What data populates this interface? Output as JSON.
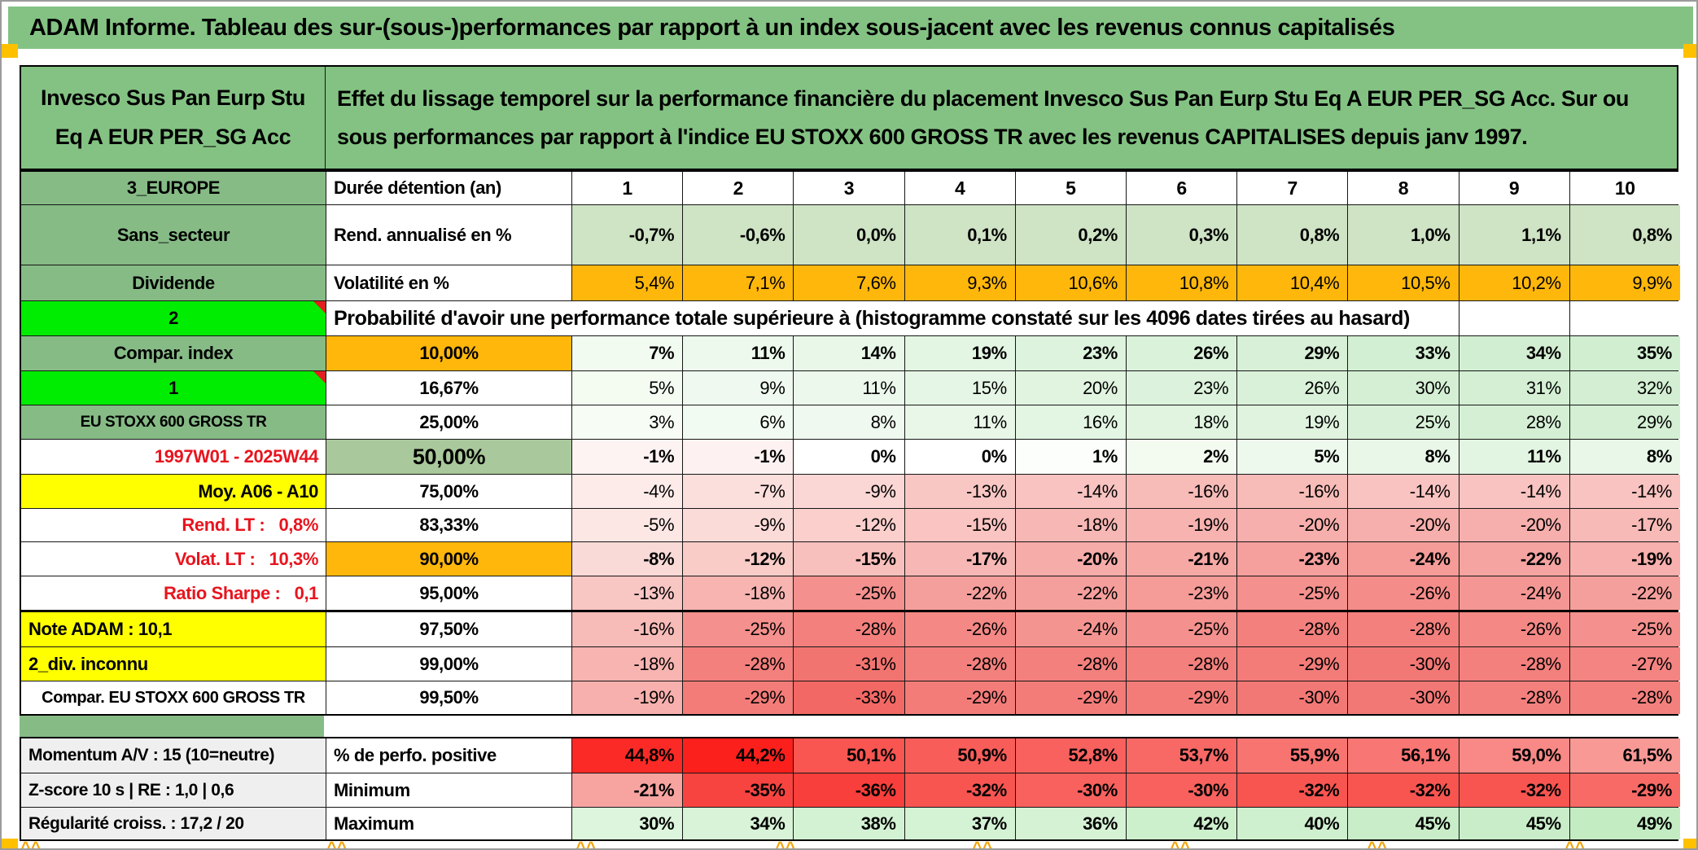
{
  "title": "ADAM Informe. Tableau des sur-(sous-)performances par rapport à un index sous-jacent avec les revenus connus capitalisés",
  "header": {
    "fund_name": "Invesco Sus Pan Eurp Stu Eq A EUR PER_SG Acc",
    "description": "Effet du lissage temporel sur la performance financière du placement Invesco Sus Pan Eurp Stu Eq A EUR PER_SG Acc. Sur ou sous performances par rapport à l'indice EU STOXX 600 GROSS TR avec les revenus CAPITALISES depuis janv 1997."
  },
  "colors": {
    "header_green": "#83C283",
    "label_green": "#86BB86",
    "bright_green": "#00EC00",
    "sage": "#A9C89B",
    "light_green_row": "#CFE3C5",
    "orange": "#FFB70B",
    "yellow": "#FFFF00",
    "red_text": "#E8141E",
    "gray_label": "#EFEFEF",
    "corner_red": "#E02020",
    "edge_orange": "#FFC000",
    "caret_orange": "#F2A50C",
    "white": "#FFFFFF"
  },
  "columns_header": {
    "left": "3_EUROPE",
    "label": "Durée détention (an)",
    "durations": [
      "1",
      "2",
      "3",
      "4",
      "5",
      "6",
      "7",
      "8",
      "9",
      "10"
    ]
  },
  "stat_rows": [
    {
      "left": {
        "t": "Sans_secteur",
        "bg": "#86BB86",
        "align": "c"
      },
      "mid": {
        "t": "Rend. annualisé en %",
        "bg": "#FFFFFF",
        "align": "l"
      },
      "bold": true,
      "v": [
        "-0,7%",
        "-0,6%",
        "0,0%",
        "0,1%",
        "0,2%",
        "0,3%",
        "0,8%",
        "1,0%",
        "1,1%",
        "0,8%"
      ],
      "bg": [
        "#CFE3C5",
        "#CFE3C5",
        "#CFE3C5",
        "#CFE3C5",
        "#CFE3C5",
        "#CFE3C5",
        "#CFE3C5",
        "#CFE3C5",
        "#CFE3C5",
        "#CFE3C5"
      ]
    },
    {
      "left": {
        "t": "Dividende",
        "bg": "#86BB86",
        "align": "c"
      },
      "mid": {
        "t": "Volatilité en %",
        "bg": "#FFFFFF",
        "align": "l"
      },
      "bold": false,
      "v": [
        "5,4%",
        "7,1%",
        "7,6%",
        "9,3%",
        "10,6%",
        "10,8%",
        "10,4%",
        "10,5%",
        "10,2%",
        "9,9%"
      ],
      "bg": [
        "#FFB70B",
        "#FFB70B",
        "#FFB70B",
        "#FFB70B",
        "#FFB70B",
        "#FFB70B",
        "#FFB70B",
        "#FFB70B",
        "#FFB70B",
        "#FFB70B"
      ]
    }
  ],
  "probability_banner": {
    "left": {
      "t": "2",
      "bg": "#00EC00",
      "align": "c",
      "corner": true
    },
    "note": "Probabilité d'avoir une performance totale supérieure à (histogramme constaté sur les 4096 dates tirées au hasard)",
    "empty_cols": 2
  },
  "probability_rows": [
    {
      "left": {
        "t": "Compar. index",
        "bg": "#86BB86",
        "align": "c"
      },
      "mid": {
        "t": "10,00%",
        "bg": "#FFB70B",
        "align": "c"
      },
      "bold": true,
      "v": [
        "7%",
        "11%",
        "14%",
        "19%",
        "23%",
        "26%",
        "29%",
        "33%",
        "34%",
        "35%"
      ],
      "bg": [
        "#F2FBF0",
        "#EDF9ED",
        "#E9F7E9",
        "#E3F5E3",
        "#DEF3DE",
        "#DAF2DA",
        "#D7F0D7",
        "#D3EFD3",
        "#D2EED2",
        "#D1EED1"
      ]
    },
    {
      "left": {
        "t": "1",
        "bg": "#00EC00",
        "align": "c",
        "corner": true
      },
      "mid": {
        "t": "16,67%",
        "bg": "#FFFFFF",
        "align": "c"
      },
      "bold": false,
      "v": [
        "5%",
        "9%",
        "11%",
        "15%",
        "20%",
        "23%",
        "26%",
        "30%",
        "31%",
        "32%"
      ],
      "bg": [
        "#F4FCF2",
        "#EFF9EF",
        "#ECF8EC",
        "#E6F6E6",
        "#E0F4E0",
        "#DCF2DC",
        "#D9F1D9",
        "#D5EFD5",
        "#D4EFD4",
        "#D3EED3"
      ]
    },
    {
      "left": {
        "t": "EU STOXX 600 GROSS TR",
        "bg": "#86BB86",
        "align": "c",
        "size": 19
      },
      "mid": {
        "t": "25,00%",
        "bg": "#FFFFFF",
        "align": "c"
      },
      "bold": false,
      "v": [
        "3%",
        "6%",
        "8%",
        "11%",
        "16%",
        "18%",
        "19%",
        "25%",
        "28%",
        "29%"
      ],
      "bg": [
        "#F7FDF5",
        "#F2FBF1",
        "#EFF9EF",
        "#E9F7E9",
        "#E3F5E3",
        "#E0F4E0",
        "#DFF3DF",
        "#D8F0D8",
        "#D5EFD5",
        "#D4EFD4"
      ]
    },
    {
      "left": {
        "t": "1997W01 - 2025W44",
        "bg": "#FFFFFF",
        "fg": "#E8141E",
        "align": "r"
      },
      "mid": {
        "t": "50,00%",
        "bg": "#A9C89B",
        "align": "c",
        "big": true
      },
      "bold": true,
      "v": [
        "-1%",
        "-1%",
        "0%",
        "0%",
        "1%",
        "2%",
        "5%",
        "8%",
        "11%",
        "8%"
      ],
      "bg": [
        "#FDF3F2",
        "#FDF2F1",
        "#FFFFFF",
        "#FFFFFF",
        "#FBFEFA",
        "#F3FBF1",
        "#EEF9EE",
        "#E8F7E8",
        "#E2F5E2",
        "#E8F7E8"
      ]
    },
    {
      "left": {
        "t": "Moy. A06 - A10",
        "bg": "#FFFF00",
        "align": "r"
      },
      "mid": {
        "t": "75,00%",
        "bg": "#FFFFFF",
        "align": "c"
      },
      "bold": false,
      "v": [
        "-4%",
        "-7%",
        "-9%",
        "-13%",
        "-14%",
        "-16%",
        "-16%",
        "-14%",
        "-14%",
        "-14%"
      ],
      "bg": [
        "#FCEBE9",
        "#FBDFDC",
        "#FAD7D4",
        "#F8C7C4",
        "#F8C3C0",
        "#F7BBB8",
        "#F7BBB8",
        "#F8C3C0",
        "#F8C3C0",
        "#F8C3C0"
      ]
    },
    {
      "left": {
        "t": "Rend. LT :   0,8%",
        "bg": "#FFFFFF",
        "fg": "#E8141E",
        "align": "r"
      },
      "mid": {
        "t": "83,33%",
        "bg": "#FFFFFF",
        "align": "c"
      },
      "bold": false,
      "v": [
        "-5%",
        "-9%",
        "-12%",
        "-15%",
        "-18%",
        "-19%",
        "-20%",
        "-20%",
        "-20%",
        "-17%"
      ],
      "bg": [
        "#FCE7E4",
        "#FBDBD8",
        "#FACFCC",
        "#F9C4C1",
        "#F7B7B4",
        "#F7B3B0",
        "#F6AFAC",
        "#F6AFAC",
        "#F6AFAC",
        "#F7BAB7"
      ]
    },
    {
      "left": {
        "t": "Volat. LT :   10,3%",
        "bg": "#FFFFFF",
        "fg": "#E8141E",
        "align": "r"
      },
      "mid": {
        "t": "90,00%",
        "bg": "#FFB70B",
        "align": "c"
      },
      "bold": true,
      "v": [
        "-8%",
        "-12%",
        "-15%",
        "-17%",
        "-20%",
        "-21%",
        "-23%",
        "-24%",
        "-22%",
        "-19%"
      ],
      "bg": [
        "#FADAD7",
        "#F9CCC8",
        "#F8C0BD",
        "#F7B8B5",
        "#F6ACA9",
        "#F6A8A5",
        "#F5A09D",
        "#F59C99",
        "#F5A4A1",
        "#F7B0AD"
      ]
    },
    {
      "left": {
        "t": "Ratio Sharpe :   0,1",
        "bg": "#FFFFFF",
        "fg": "#E8141E",
        "align": "r"
      },
      "mid": {
        "t": "95,00%",
        "bg": "#FFFFFF",
        "align": "c"
      },
      "bold": false,
      "v": [
        "-13%",
        "-18%",
        "-25%",
        "-22%",
        "-22%",
        "-23%",
        "-25%",
        "-26%",
        "-24%",
        "-22%"
      ],
      "bg": [
        "#F8C6C3",
        "#F7B4B1",
        "#F4908D",
        "#F59F9C",
        "#F59F9C",
        "#F59B98",
        "#F4908D",
        "#F48C89",
        "#F49794",
        "#F59F9C"
      ]
    },
    {
      "left": {
        "t": "Note ADAM : 10,1",
        "bg": "#FFFF00",
        "align": "l"
      },
      "mid": {
        "t": "97,50%",
        "bg": "#FFFFFF",
        "align": "c"
      },
      "bold": false,
      "thick_top": true,
      "v": [
        "-16%",
        "-25%",
        "-28%",
        "-26%",
        "-24%",
        "-25%",
        "-28%",
        "-28%",
        "-26%",
        "-25%"
      ],
      "bg": [
        "#F7BBB8",
        "#F4908D",
        "#F3807D",
        "#F48885",
        "#F49491",
        "#F4908D",
        "#F3807D",
        "#F3807D",
        "#F48885",
        "#F4908D"
      ]
    },
    {
      "left": {
        "t": "2_div. inconnu",
        "bg": "#FFFF00",
        "align": "l"
      },
      "mid": {
        "t": "99,00%",
        "bg": "#FFFFFF",
        "align": "c"
      },
      "bold": false,
      "v": [
        "-18%",
        "-28%",
        "-31%",
        "-28%",
        "-28%",
        "-28%",
        "-29%",
        "-30%",
        "-28%",
        "-27%"
      ],
      "bg": [
        "#F7B4B1",
        "#F3807D",
        "#F27470",
        "#F3807D",
        "#F3807D",
        "#F3807D",
        "#F37C79",
        "#F27875",
        "#F3807D",
        "#F38481"
      ]
    },
    {
      "left": {
        "t": "Compar. EU STOXX 600 GROSS TR",
        "bg": "#FFFFFF",
        "align": "c",
        "size": 20
      },
      "mid": {
        "t": "99,50%",
        "bg": "#FFFFFF",
        "align": "c"
      },
      "bold": false,
      "v": [
        "-19%",
        "-29%",
        "-33%",
        "-29%",
        "-29%",
        "-29%",
        "-30%",
        "-30%",
        "-28%",
        "-28%"
      ],
      "bg": [
        "#F7B0AD",
        "#F37C79",
        "#F26864",
        "#F37C79",
        "#F37C79",
        "#F37C79",
        "#F27875",
        "#F27875",
        "#F3807D",
        "#F3807D"
      ]
    }
  ],
  "summary_rows": [
    {
      "left": {
        "t": "Momentum A/V : 15 (10=neutre)",
        "bg": "#EFEFEF",
        "align": "l",
        "size": 21
      },
      "mid": {
        "t": "% de perfo. positive",
        "bg": "#FFFFFF",
        "align": "l"
      },
      "bold": true,
      "v": [
        "44,8%",
        "44,2%",
        "50,1%",
        "50,9%",
        "52,8%",
        "53,7%",
        "55,9%",
        "56,1%",
        "59,0%",
        "61,5%"
      ],
      "bg": [
        "#FC2A26",
        "#FC201C",
        "#F95551",
        "#F95D59",
        "#F8615E",
        "#F86865",
        "#F87471",
        "#F87673",
        "#F88986",
        "#F89996"
      ]
    },
    {
      "left": {
        "t": "Z-score 10 s | RE : 1,0 | 0,6",
        "bg": "#EFEFEF",
        "align": "l",
        "size": 21
      },
      "mid": {
        "t": "Minimum",
        "bg": "#FFFFFF",
        "align": "l"
      },
      "bold": true,
      "v": [
        "-21%",
        "-35%",
        "-36%",
        "-32%",
        "-30%",
        "-30%",
        "-32%",
        "-32%",
        "-32%",
        "-29%"
      ],
      "bg": [
        "#F7A4A1",
        "#F84440",
        "#F83F3B",
        "#F85551",
        "#F8615D",
        "#F8615D",
        "#F85551",
        "#F85551",
        "#F85551",
        "#F86A66"
      ]
    },
    {
      "left": {
        "t": "Régularité croiss. : 17,2 / 20",
        "bg": "#EFEFEF",
        "align": "l",
        "size": 21
      },
      "mid": {
        "t": "Maximum",
        "bg": "#FFFFFF",
        "align": "l"
      },
      "bold": true,
      "v": [
        "30%",
        "34%",
        "38%",
        "37%",
        "36%",
        "42%",
        "40%",
        "45%",
        "45%",
        "49%"
      ],
      "bg": [
        "#DCF5DC",
        "#D8F3D8",
        "#D3F1D3",
        "#D4F2D4",
        "#D5F2D5",
        "#CCEFCC",
        "#CFF0CF",
        "#C8EDC8",
        "#C8EDC8",
        "#C3ECC3"
      ]
    }
  ]
}
